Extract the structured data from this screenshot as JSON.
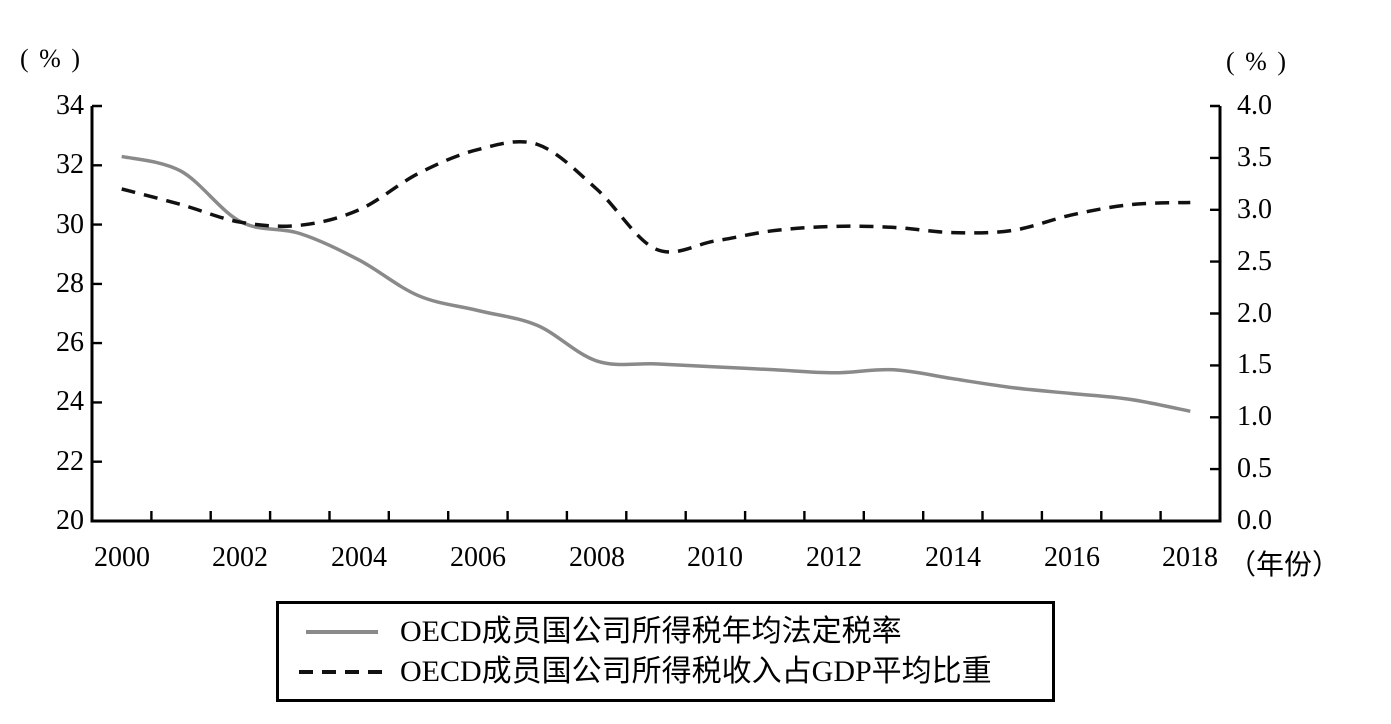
{
  "page": {
    "background": "#ffffff"
  },
  "chart_data": {
    "type": "line",
    "x": [
      2000,
      2001,
      2002,
      2003,
      2004,
      2005,
      2006,
      2007,
      2008,
      2009,
      2010,
      2011,
      2012,
      2013,
      2014,
      2015,
      2016,
      2017,
      2018
    ],
    "x_tick_labels": [
      "2000",
      "2002",
      "2004",
      "2006",
      "2008",
      "2010",
      "2012",
      "2014",
      "2016",
      "2018"
    ],
    "x_axis_unit": "（年份）",
    "left_axis": {
      "unit": "( % )",
      "min": 20,
      "max": 34,
      "step": 2,
      "tick_labels": [
        "20",
        "22",
        "24",
        "26",
        "28",
        "30",
        "32",
        "34"
      ]
    },
    "right_axis": {
      "unit": "( % )",
      "min": 0.0,
      "max": 4.0,
      "step": 0.5,
      "tick_labels": [
        "0.0",
        "0.5",
        "1.0",
        "1.5",
        "2.0",
        "2.5",
        "3.0",
        "3.5",
        "4.0"
      ]
    },
    "series": [
      {
        "name": "OECD成员国公司所得税年均法定税率",
        "axis": "left",
        "line_style": "solid",
        "color": "#8a8a8a",
        "values": [
          32.3,
          31.8,
          30.1,
          29.7,
          28.8,
          27.6,
          27.1,
          26.6,
          25.4,
          25.3,
          25.2,
          25.1,
          25.0,
          25.1,
          24.8,
          24.5,
          24.3,
          24.1,
          23.7
        ]
      },
      {
        "name": "OECD成员国公司所得税收入占GDP平均比重",
        "axis": "right",
        "line_style": "dashed",
        "color": "#111111",
        "values": [
          3.2,
          3.05,
          2.88,
          2.85,
          3.0,
          3.35,
          3.58,
          3.63,
          3.2,
          2.62,
          2.7,
          2.8,
          2.84,
          2.83,
          2.78,
          2.8,
          2.95,
          3.05,
          3.07
        ]
      }
    ],
    "grid": false,
    "legend_position": "bottom",
    "axis_color": "#000000"
  }
}
